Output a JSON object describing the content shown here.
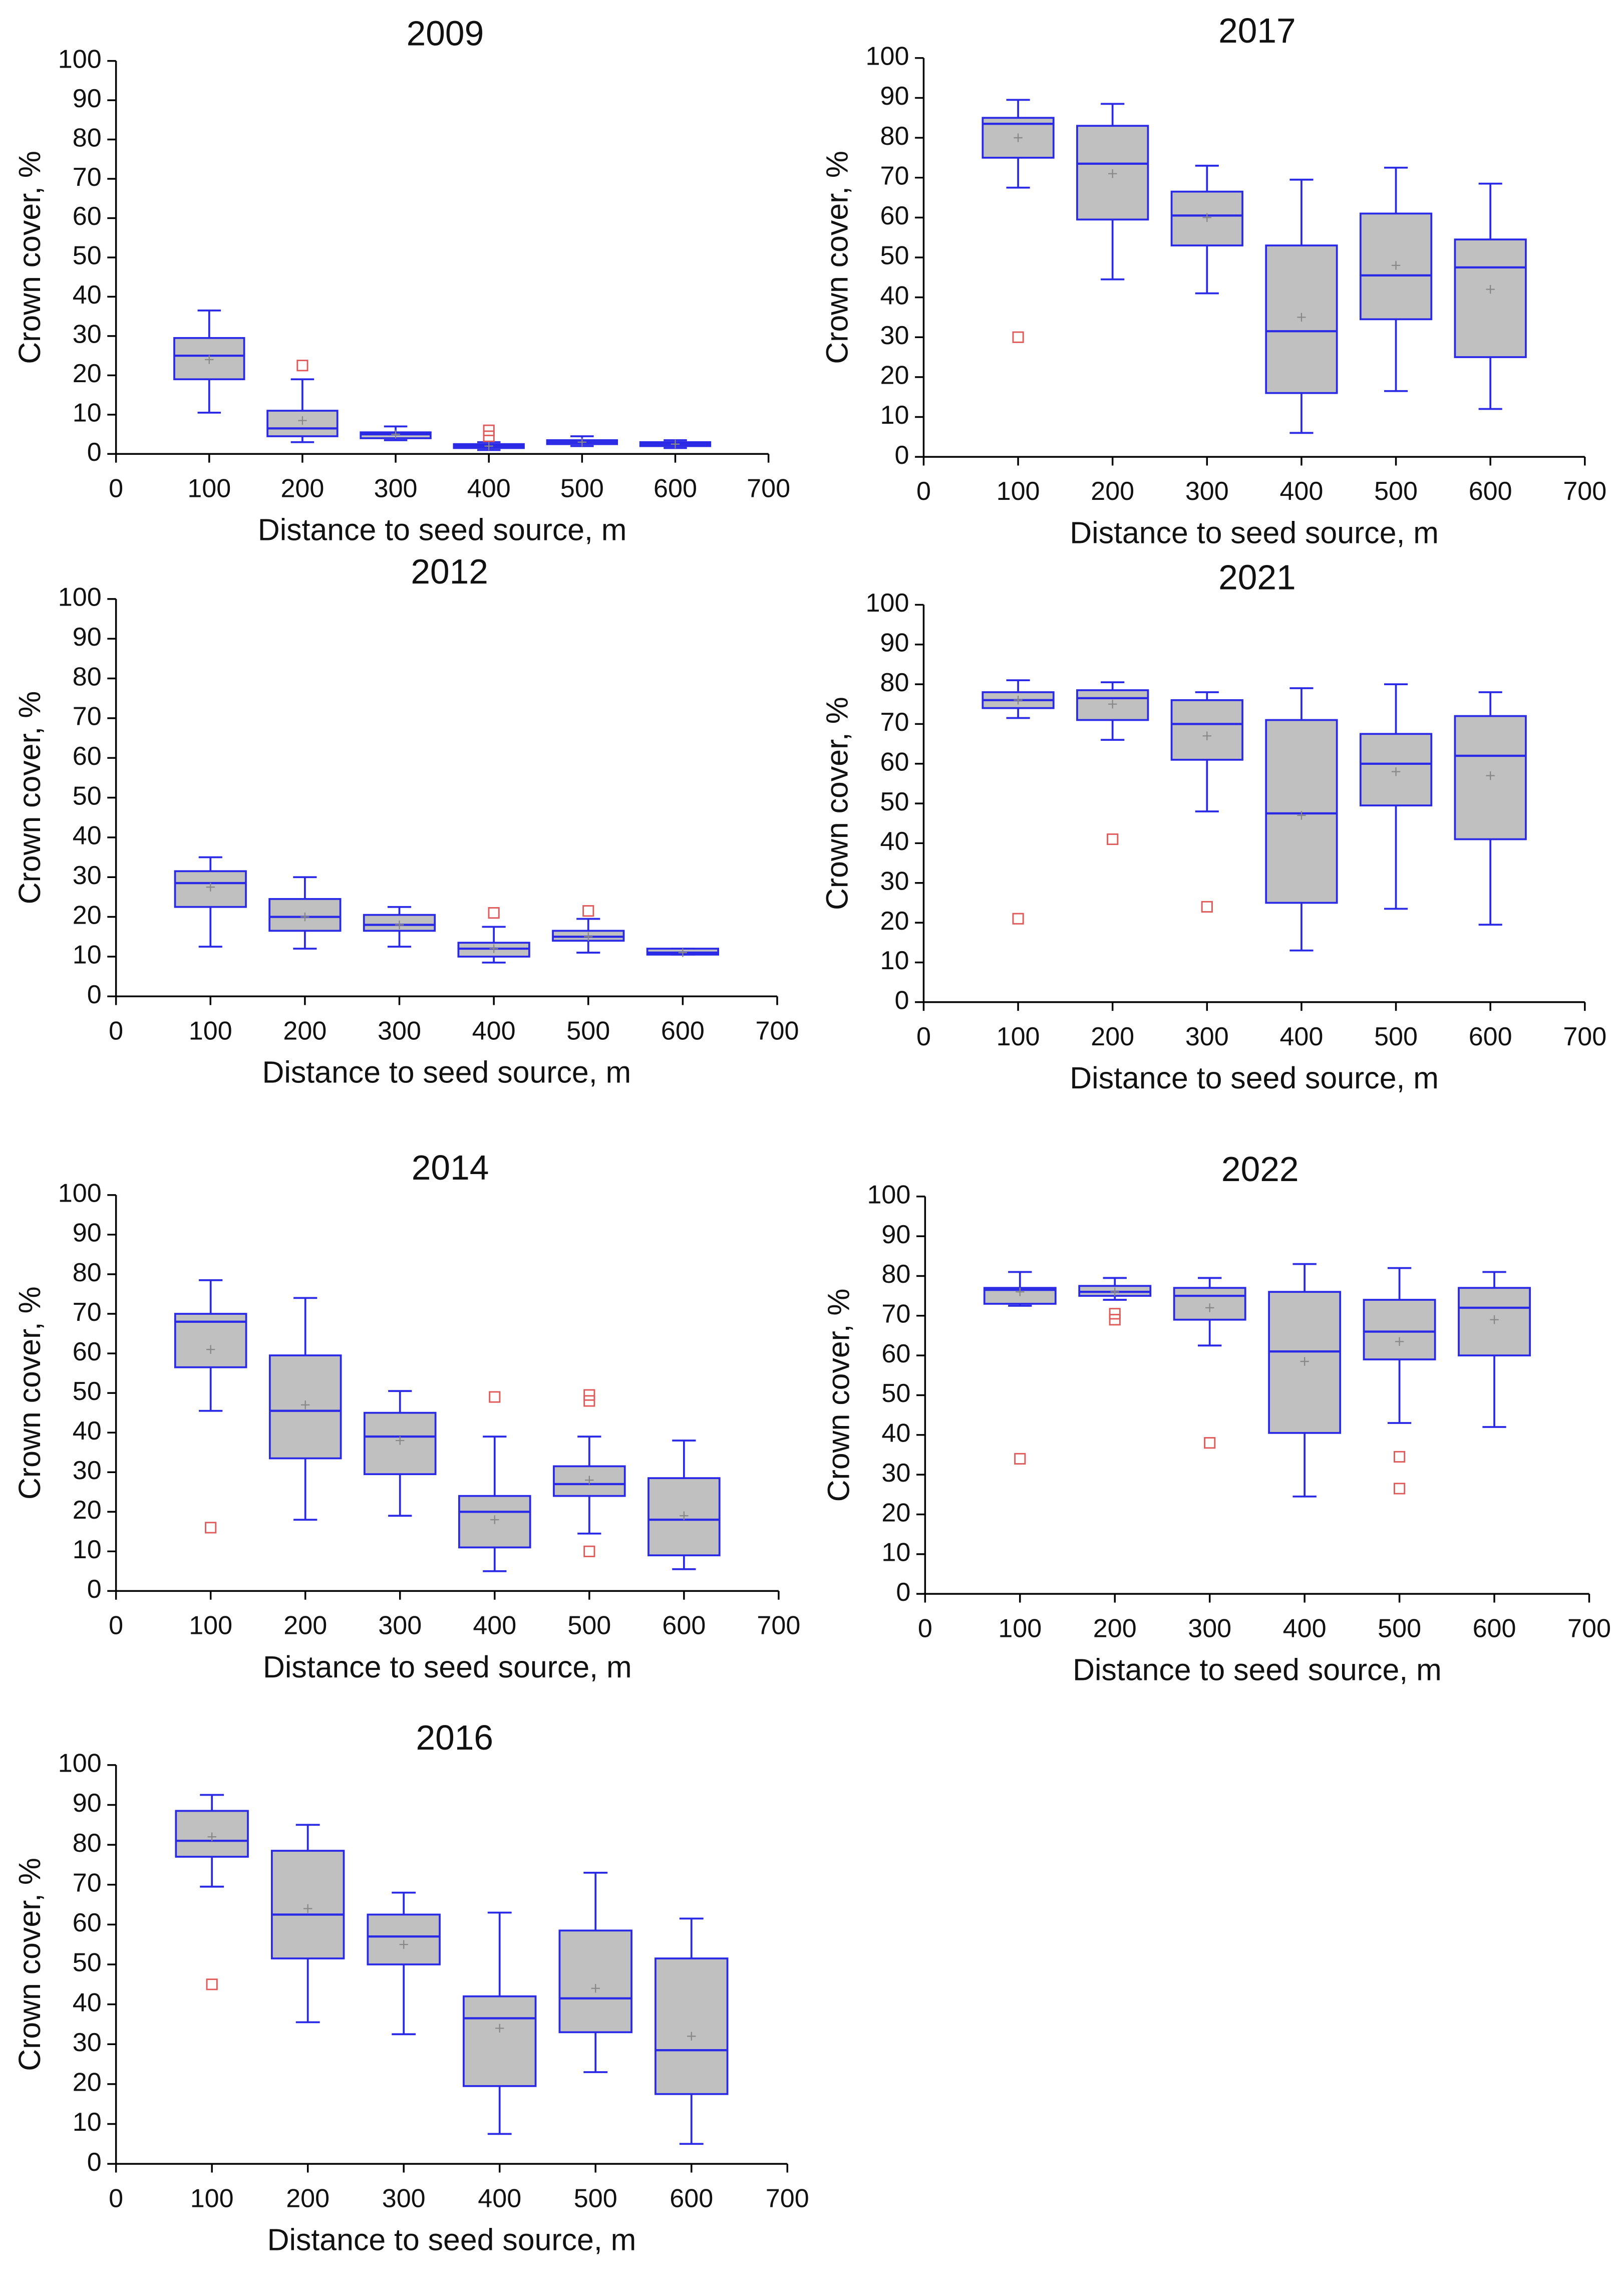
{
  "chart_data": [
    {
      "type": "box",
      "title": "2009",
      "xlabel": "Distance to seed source, m",
      "ylabel": "Crown cover, %",
      "xlim": [
        0,
        700
      ],
      "xticks": [
        0,
        100,
        200,
        300,
        400,
        500,
        600,
        700
      ],
      "ylim": [
        0,
        100
      ],
      "yticks": [
        0,
        10,
        20,
        30,
        40,
        50,
        60,
        70,
        80,
        90,
        100
      ],
      "box_color": "#c0c0c0",
      "edge_color": "#2a2ae6",
      "flier_color": "#e05a5a",
      "boxes": [
        {
          "x": 100,
          "whislo": 10.5,
          "q1": 19,
          "med": 25,
          "q3": 29.5,
          "whishi": 36.5,
          "mean": 24,
          "fliers": []
        },
        {
          "x": 200,
          "whislo": 3,
          "q1": 4.5,
          "med": 6.5,
          "q3": 11,
          "whishi": 19,
          "mean": 8.5,
          "fliers": [
            22.5
          ]
        },
        {
          "x": 300,
          "whislo": 3.5,
          "q1": 4,
          "med": 5,
          "q3": 5.5,
          "whishi": 7,
          "mean": 5,
          "fliers": []
        },
        {
          "x": 400,
          "whislo": 1,
          "q1": 1.5,
          "med": 2,
          "q3": 2.5,
          "whishi": 3,
          "mean": 2,
          "fliers": [
            4.5,
            6
          ]
        },
        {
          "x": 500,
          "whislo": 2,
          "q1": 2.5,
          "med": 3,
          "q3": 3.5,
          "whishi": 4.5,
          "mean": 3,
          "fliers": []
        },
        {
          "x": 600,
          "whislo": 1.5,
          "q1": 2,
          "med": 2.5,
          "q3": 3,
          "whishi": 3.5,
          "mean": 2.5,
          "fliers": []
        }
      ]
    },
    {
      "type": "box",
      "title": "2012",
      "xlabel": "Distance to seed source, m",
      "ylabel": "Crown cover, %",
      "xlim": [
        0,
        700
      ],
      "xticks": [
        0,
        100,
        200,
        300,
        400,
        500,
        600,
        700
      ],
      "ylim": [
        0,
        100
      ],
      "yticks": [
        0,
        10,
        20,
        30,
        40,
        50,
        60,
        70,
        80,
        90,
        100
      ],
      "box_color": "#c0c0c0",
      "edge_color": "#2a2ae6",
      "flier_color": "#e05a5a",
      "boxes": [
        {
          "x": 100,
          "whislo": 12.5,
          "q1": 22.5,
          "med": 28.5,
          "q3": 31.5,
          "whishi": 35,
          "mean": 27.5,
          "fliers": []
        },
        {
          "x": 200,
          "whislo": 12,
          "q1": 16.5,
          "med": 20,
          "q3": 24.5,
          "whishi": 30,
          "mean": 20,
          "fliers": []
        },
        {
          "x": 300,
          "whislo": 12.5,
          "q1": 16.5,
          "med": 18,
          "q3": 20.5,
          "whishi": 22.5,
          "mean": 18,
          "fliers": []
        },
        {
          "x": 400,
          "whislo": 8.5,
          "q1": 10,
          "med": 12,
          "q3": 13.5,
          "whishi": 17.5,
          "mean": 12,
          "fliers": [
            21
          ]
        },
        {
          "x": 500,
          "whislo": 11,
          "q1": 14,
          "med": 15,
          "q3": 16.5,
          "whishi": 19.5,
          "mean": 15,
          "fliers": [
            21.5
          ]
        },
        {
          "x": 600,
          "whislo": 10.5,
          "q1": 10.5,
          "med": 11,
          "q3": 12,
          "whishi": 12,
          "mean": 11,
          "fliers": []
        }
      ]
    },
    {
      "type": "box",
      "title": "2014",
      "xlabel": "Distance to seed source, m",
      "ylabel": "Crown cover, %",
      "xlim": [
        0,
        700
      ],
      "xticks": [
        0,
        100,
        200,
        300,
        400,
        500,
        600,
        700
      ],
      "ylim": [
        0,
        100
      ],
      "yticks": [
        0,
        10,
        20,
        30,
        40,
        50,
        60,
        70,
        80,
        90,
        100
      ],
      "box_color": "#c0c0c0",
      "edge_color": "#2a2ae6",
      "flier_color": "#e05a5a",
      "boxes": [
        {
          "x": 100,
          "whislo": 45.5,
          "q1": 56.5,
          "med": 68,
          "q3": 70,
          "whishi": 78.5,
          "mean": 61,
          "fliers": [
            16
          ]
        },
        {
          "x": 200,
          "whislo": 18,
          "q1": 33.5,
          "med": 45.5,
          "q3": 59.5,
          "whishi": 74,
          "mean": 47,
          "fliers": []
        },
        {
          "x": 300,
          "whislo": 19,
          "q1": 29.5,
          "med": 39,
          "q3": 45,
          "whishi": 50.5,
          "mean": 38,
          "fliers": []
        },
        {
          "x": 400,
          "whislo": 5,
          "q1": 11,
          "med": 20,
          "q3": 24,
          "whishi": 39,
          "mean": 18,
          "fliers": [
            49
          ]
        },
        {
          "x": 500,
          "whislo": 14.5,
          "q1": 24,
          "med": 27,
          "q3": 31.5,
          "whishi": 39,
          "mean": 28,
          "fliers": [
            10,
            48,
            49.5
          ]
        },
        {
          "x": 600,
          "whislo": 5.5,
          "q1": 9,
          "med": 18,
          "q3": 28.5,
          "whishi": 38,
          "mean": 19,
          "fliers": []
        }
      ]
    },
    {
      "type": "box",
      "title": "2016",
      "xlabel": "Distance to seed source, m",
      "ylabel": "Crown cover, %",
      "xlim": [
        0,
        700
      ],
      "xticks": [
        0,
        100,
        200,
        300,
        400,
        500,
        600,
        700
      ],
      "ylim": [
        0,
        100
      ],
      "yticks": [
        0,
        10,
        20,
        30,
        40,
        50,
        60,
        70,
        80,
        90,
        100
      ],
      "box_color": "#c0c0c0",
      "edge_color": "#2a2ae6",
      "flier_color": "#e05a5a",
      "boxes": [
        {
          "x": 100,
          "whislo": 69.5,
          "q1": 77,
          "med": 81,
          "q3": 88.5,
          "whishi": 92.5,
          "mean": 82,
          "fliers": [
            45
          ]
        },
        {
          "x": 200,
          "whislo": 35.5,
          "q1": 51.5,
          "med": 62.5,
          "q3": 78.5,
          "whishi": 85,
          "mean": 64,
          "fliers": []
        },
        {
          "x": 300,
          "whislo": 32.5,
          "q1": 50,
          "med": 57,
          "q3": 62.5,
          "whishi": 68,
          "mean": 55,
          "fliers": []
        },
        {
          "x": 400,
          "whislo": 7.5,
          "q1": 19.5,
          "med": 36.5,
          "q3": 42,
          "whishi": 63,
          "mean": 34,
          "fliers": []
        },
        {
          "x": 500,
          "whislo": 23,
          "q1": 33,
          "med": 41.5,
          "q3": 58.5,
          "whishi": 73,
          "mean": 44,
          "fliers": []
        },
        {
          "x": 600,
          "whislo": 5,
          "q1": 17.5,
          "med": 28.5,
          "q3": 51.5,
          "whishi": 61.5,
          "mean": 32,
          "fliers": []
        }
      ]
    },
    {
      "type": "box",
      "title": "2017",
      "xlabel": "Distance to seed source, m",
      "ylabel": "Crown cover, %",
      "xlim": [
        0,
        700
      ],
      "xticks": [
        0,
        100,
        200,
        300,
        400,
        500,
        600,
        700
      ],
      "ylim": [
        0,
        100
      ],
      "yticks": [
        0,
        10,
        20,
        30,
        40,
        50,
        60,
        70,
        80,
        90,
        100
      ],
      "box_color": "#c0c0c0",
      "edge_color": "#2a2ae6",
      "flier_color": "#e05a5a",
      "boxes": [
        {
          "x": 100,
          "whislo": 67.5,
          "q1": 75,
          "med": 83.5,
          "q3": 85,
          "whishi": 89.5,
          "mean": 80,
          "fliers": [
            30
          ]
        },
        {
          "x": 200,
          "whislo": 44.5,
          "q1": 59.5,
          "med": 73.5,
          "q3": 83,
          "whishi": 88.5,
          "mean": 71,
          "fliers": []
        },
        {
          "x": 300,
          "whislo": 41,
          "q1": 53,
          "med": 60.5,
          "q3": 66.5,
          "whishi": 73,
          "mean": 60,
          "fliers": []
        },
        {
          "x": 400,
          "whislo": 6,
          "q1": 16,
          "med": 31.5,
          "q3": 53,
          "whishi": 69.5,
          "mean": 35,
          "fliers": []
        },
        {
          "x": 500,
          "whislo": 16.5,
          "q1": 34.5,
          "med": 45.5,
          "q3": 61,
          "whishi": 72.5,
          "mean": 48,
          "fliers": []
        },
        {
          "x": 600,
          "whislo": 12,
          "q1": 25,
          "med": 47.5,
          "q3": 54.5,
          "whishi": 68.5,
          "mean": 42,
          "fliers": []
        }
      ]
    },
    {
      "type": "box",
      "title": "2021",
      "xlabel": "Distance to seed source, m",
      "ylabel": "Crown cover, %",
      "xlim": [
        0,
        700
      ],
      "xticks": [
        0,
        100,
        200,
        300,
        400,
        500,
        600,
        700
      ],
      "ylim": [
        0,
        100
      ],
      "yticks": [
        0,
        10,
        20,
        30,
        40,
        50,
        60,
        70,
        80,
        90,
        100
      ],
      "box_color": "#c0c0c0",
      "edge_color": "#2a2ae6",
      "flier_color": "#e05a5a",
      "boxes": [
        {
          "x": 100,
          "whislo": 71.5,
          "q1": 74,
          "med": 76,
          "q3": 78,
          "whishi": 81,
          "mean": 76,
          "fliers": [
            21
          ]
        },
        {
          "x": 200,
          "whislo": 66,
          "q1": 71,
          "med": 76.5,
          "q3": 78.5,
          "whishi": 80.5,
          "mean": 75,
          "fliers": [
            41
          ]
        },
        {
          "x": 300,
          "whislo": 48,
          "q1": 61,
          "med": 70,
          "q3": 76,
          "whishi": 78,
          "mean": 67,
          "fliers": [
            24
          ]
        },
        {
          "x": 400,
          "whislo": 13,
          "q1": 25,
          "med": 47.5,
          "q3": 71,
          "whishi": 79,
          "mean": 47,
          "fliers": []
        },
        {
          "x": 500,
          "whislo": 23.5,
          "q1": 49.5,
          "med": 60,
          "q3": 67.5,
          "whishi": 80,
          "mean": 58,
          "fliers": []
        },
        {
          "x": 600,
          "whislo": 19.5,
          "q1": 41,
          "med": 62,
          "q3": 72,
          "whishi": 78,
          "mean": 57,
          "fliers": []
        }
      ]
    },
    {
      "type": "box",
      "title": "2022",
      "xlabel": "Distance to seed source, m",
      "ylabel": "Crown cover, %",
      "xlim": [
        0,
        700
      ],
      "xticks": [
        0,
        100,
        200,
        300,
        400,
        500,
        600,
        700
      ],
      "ylim": [
        0,
        100
      ],
      "yticks": [
        0,
        10,
        20,
        30,
        40,
        50,
        60,
        70,
        80,
        90,
        100
      ],
      "box_color": "#c0c0c0",
      "edge_color": "#2a2ae6",
      "flier_color": "#e05a5a",
      "boxes": [
        {
          "x": 100,
          "whislo": 72.5,
          "q1": 73,
          "med": 76.5,
          "q3": 77,
          "whishi": 81,
          "mean": 76,
          "fliers": [
            34
          ]
        },
        {
          "x": 200,
          "whislo": 74,
          "q1": 75,
          "med": 76,
          "q3": 77.5,
          "whishi": 79.5,
          "mean": 76,
          "fliers": [
            69,
            70.5
          ]
        },
        {
          "x": 300,
          "whislo": 62.5,
          "q1": 69,
          "med": 75,
          "q3": 77,
          "whishi": 79.5,
          "mean": 72,
          "fliers": [
            38
          ]
        },
        {
          "x": 400,
          "whislo": 24.5,
          "q1": 40.5,
          "med": 61,
          "q3": 76,
          "whishi": 83,
          "mean": 58.5,
          "fliers": []
        },
        {
          "x": 500,
          "whislo": 43,
          "q1": 59,
          "med": 66,
          "q3": 74,
          "whishi": 82,
          "mean": 63.5,
          "fliers": [
            26.5,
            34.5
          ]
        },
        {
          "x": 600,
          "whislo": 42,
          "q1": 60,
          "med": 72,
          "q3": 77,
          "whishi": 81,
          "mean": 69,
          "fliers": []
        }
      ]
    }
  ]
}
